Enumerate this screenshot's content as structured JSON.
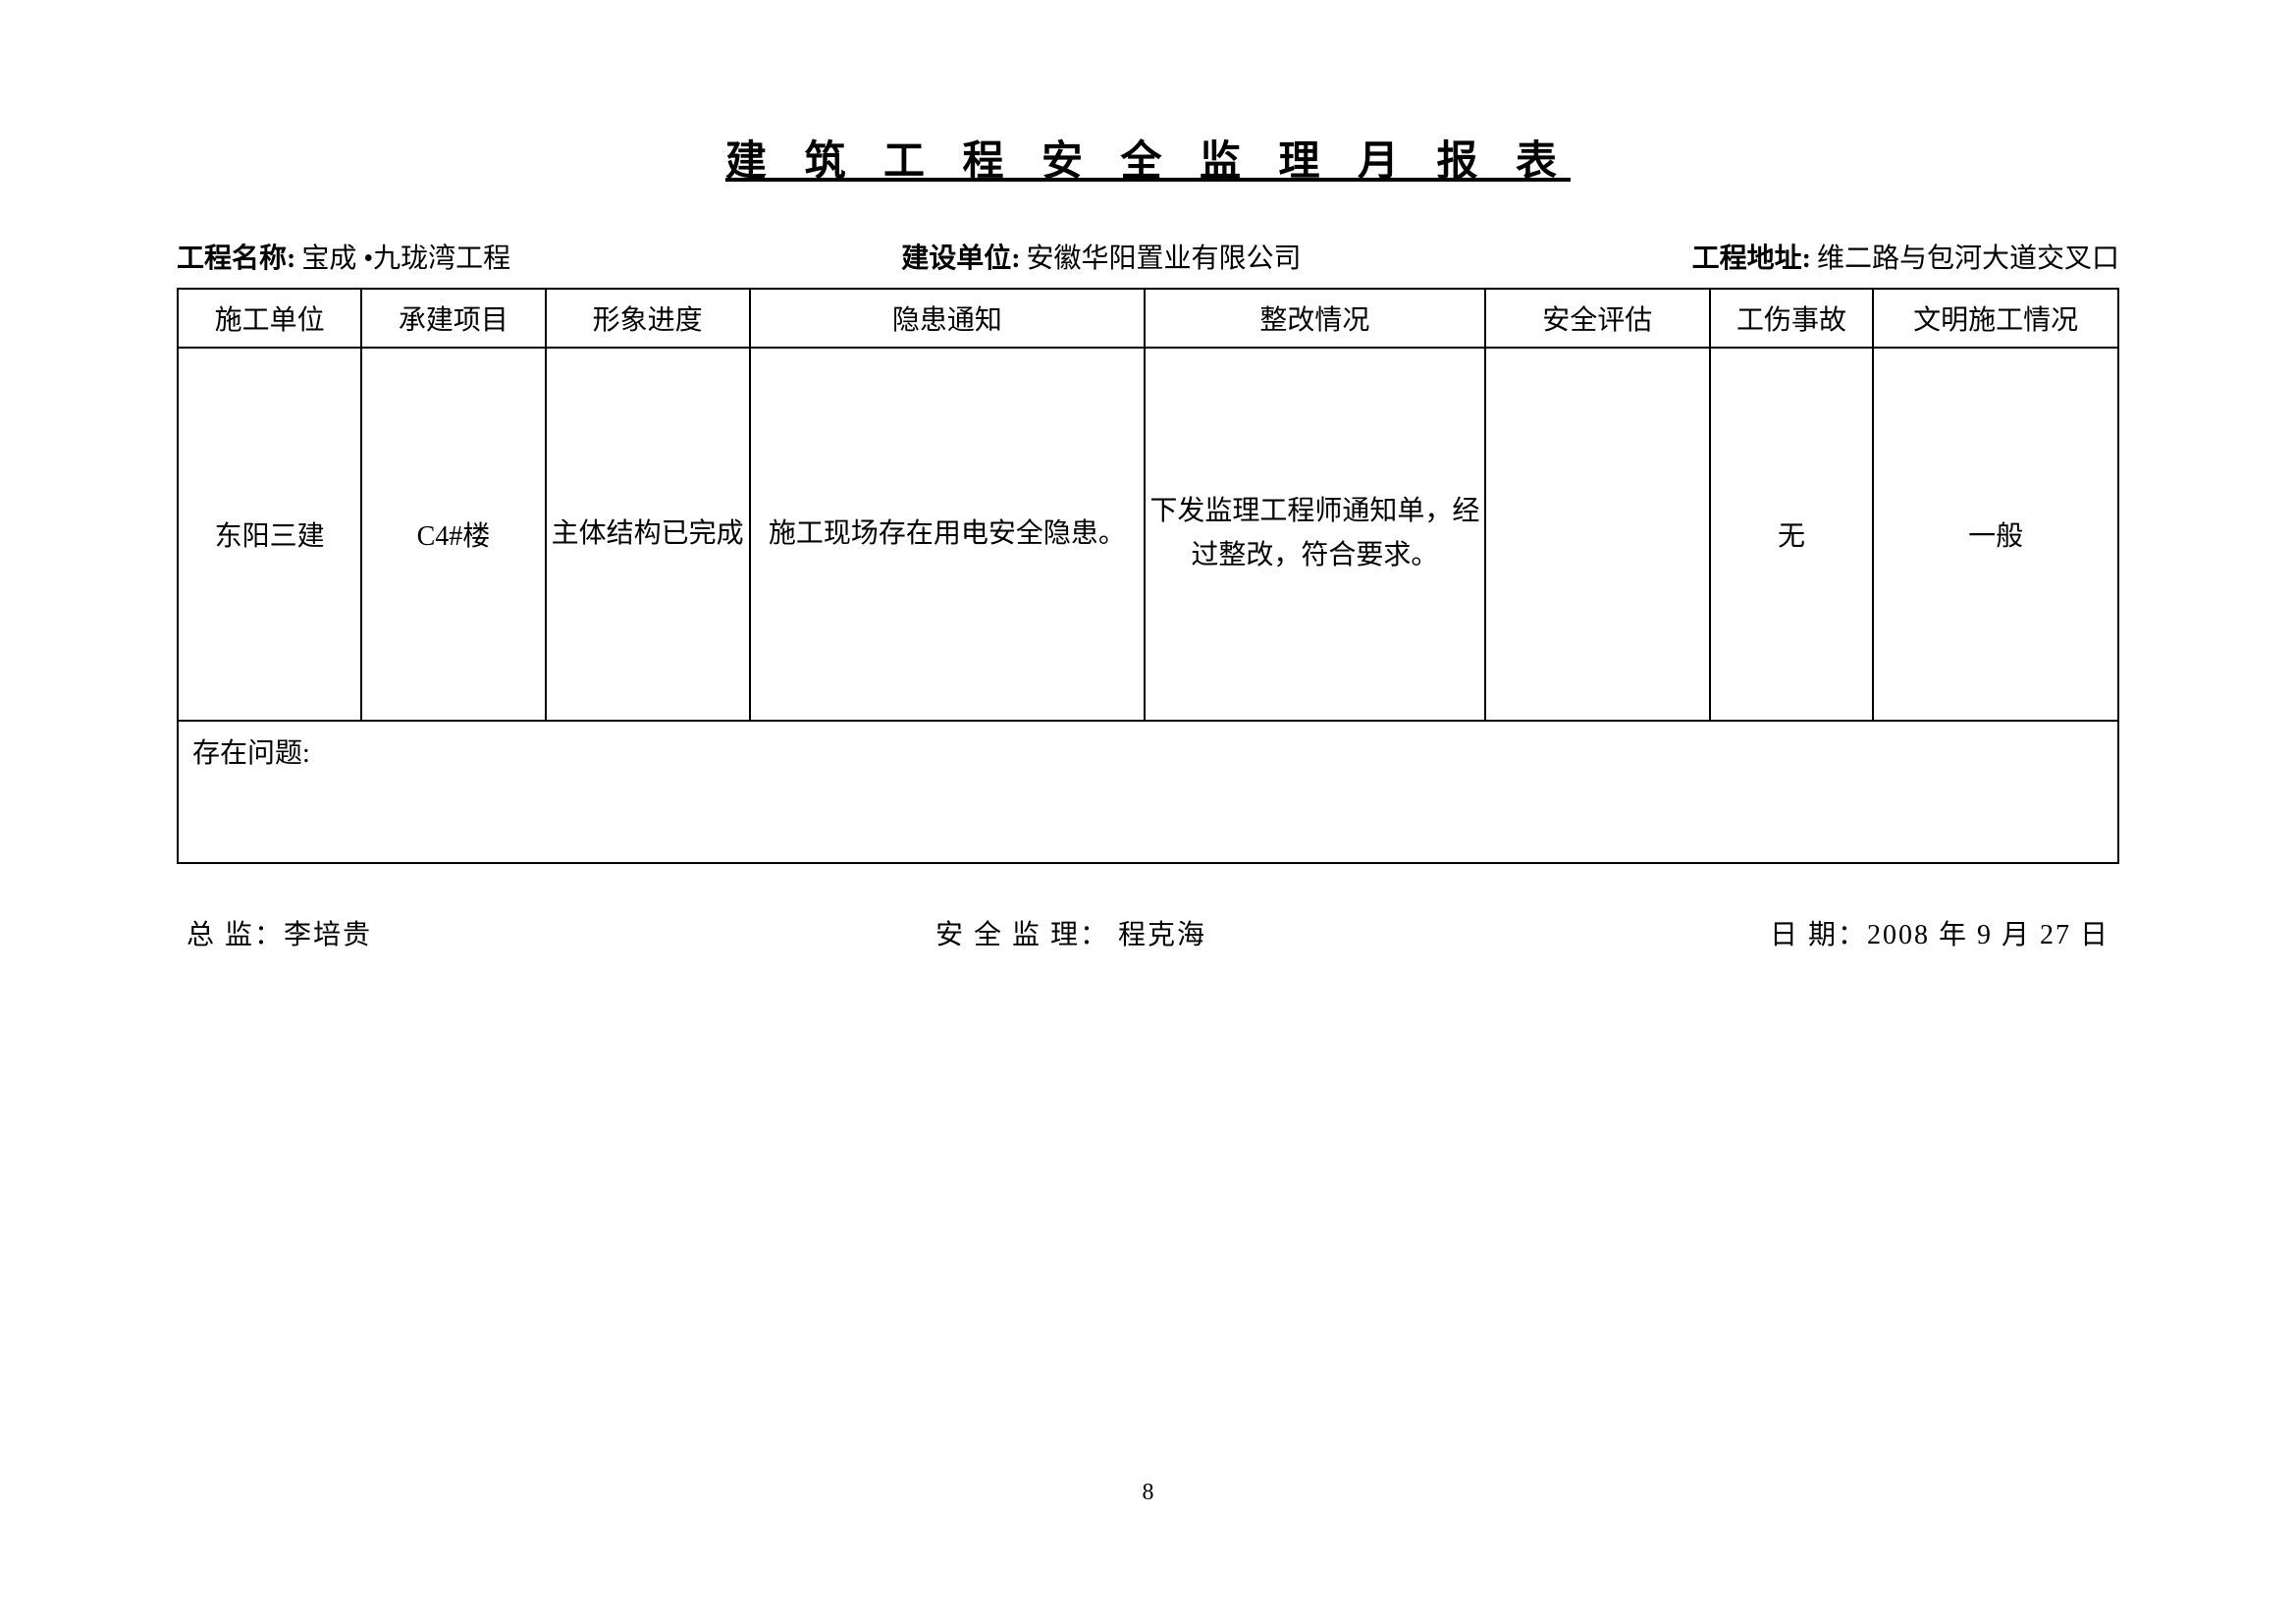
{
  "title": "建 筑 工 程 安 全 监 理 月 报 表",
  "meta": {
    "project_name_label": "工程名称:",
    "project_name_value": "宝成 •九珑湾工程",
    "construction_unit_label": "建设单位:",
    "construction_unit_value": "安徽华阳置业有限公司",
    "project_address_label": "工程地址:",
    "project_address_value": "维二路与包河大道交叉口"
  },
  "table": {
    "headers": [
      "施工单位",
      "承建项目",
      "形象进度",
      "隐患通知",
      "整改情况",
      "安全评估",
      "工伤事故",
      "文明施工情况"
    ],
    "row": {
      "c1": "东阳三建",
      "c2": "C4#楼",
      "c3": "主体结构已完成",
      "c4": "施工现场存在用电安全隐患。",
      "c5": "下发监理工程师通知单，经过整改，符合要求。",
      "c6": "",
      "c7": "无",
      "c8": "一般"
    },
    "problem_label": "存在问题:"
  },
  "footer": {
    "chief_label": "总  监：",
    "chief_value": "李培贵",
    "safety_label": "安 全 监 理：",
    "safety_value": " 程克海",
    "date_label": "日    期：",
    "date_value": "2008 年 9 月 27 日"
  },
  "page_number": "8"
}
